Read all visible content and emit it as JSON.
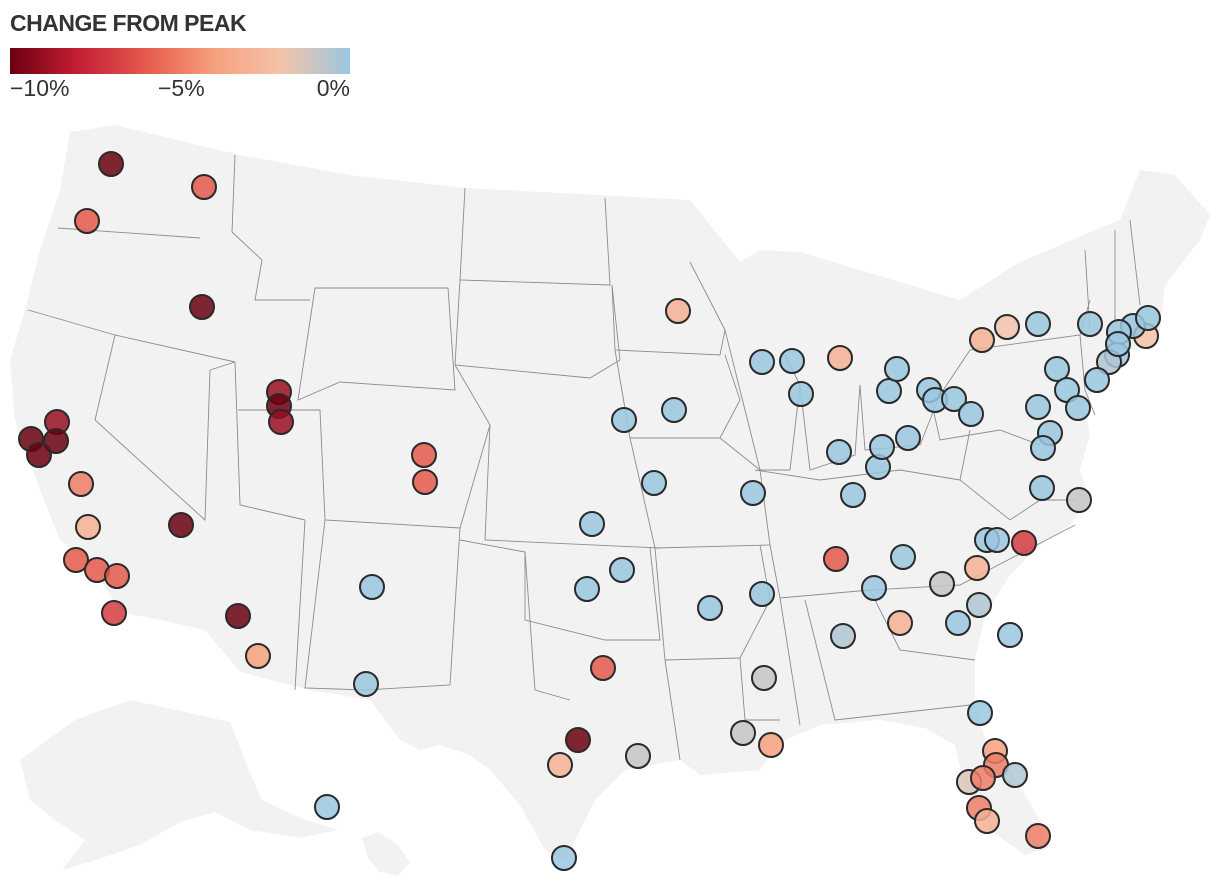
{
  "legend": {
    "title": "CHANGE FROM PEAK",
    "ticks": [
      "−10%",
      "−5%",
      "0%"
    ],
    "colors": [
      "#6b000f",
      "#c41e35",
      "#e5594c",
      "#f7a07e",
      "#f3c3aa",
      "#9ac7e0"
    ]
  },
  "points": [
    {
      "place": "WA",
      "pct": -10
    },
    {
      "place": "WA",
      "pct": -6
    },
    {
      "place": "WA",
      "pct": -6
    },
    {
      "place": "ID",
      "pct": -10
    },
    {
      "place": "UT",
      "pct": -9
    },
    {
      "place": "UT",
      "pct": -10
    },
    {
      "place": "UT",
      "pct": -9
    },
    {
      "place": "CO",
      "pct": -6
    },
    {
      "place": "CO",
      "pct": -6
    },
    {
      "place": "CA",
      "pct": -9
    },
    {
      "place": "CA",
      "pct": -10
    },
    {
      "place": "CA",
      "pct": -10
    },
    {
      "place": "CA",
      "pct": -10
    },
    {
      "place": "CA",
      "pct": -5
    },
    {
      "place": "CA",
      "pct": -3
    },
    {
      "place": "CA",
      "pct": -6
    },
    {
      "place": "CA",
      "pct": -6
    },
    {
      "place": "CA",
      "pct": -6
    },
    {
      "place": "CA",
      "pct": -7
    },
    {
      "place": "NV",
      "pct": -10
    },
    {
      "place": "AZ",
      "pct": -10
    },
    {
      "place": "AZ",
      "pct": -4
    },
    {
      "place": "NM",
      "pct": 0
    },
    {
      "place": "TX",
      "pct": 0
    },
    {
      "place": "MN",
      "pct": -3
    },
    {
      "place": "IA",
      "pct": 0
    },
    {
      "place": "IA",
      "pct": 0
    },
    {
      "place": "WI",
      "pct": 0
    },
    {
      "place": "WI",
      "pct": 0
    },
    {
      "place": "MI",
      "pct": -3
    },
    {
      "place": "IL",
      "pct": 0
    },
    {
      "place": "MO",
      "pct": 0
    },
    {
      "place": "MO",
      "pct": 0
    },
    {
      "place": "KS",
      "pct": 0
    },
    {
      "place": "OK",
      "pct": 0
    },
    {
      "place": "OK",
      "pct": 0
    },
    {
      "place": "TX",
      "pct": -6
    },
    {
      "place": "TX",
      "pct": -10
    },
    {
      "place": "TX",
      "pct": -3
    },
    {
      "place": "TX",
      "pct": -1
    },
    {
      "place": "TX",
      "pct": 0
    },
    {
      "place": "AR",
      "pct": 0
    },
    {
      "place": "LA",
      "pct": -1
    },
    {
      "place": "LA",
      "pct": -1
    },
    {
      "place": "LA",
      "pct": -4
    },
    {
      "place": "TN",
      "pct": 0
    },
    {
      "place": "TN",
      "pct": -6
    },
    {
      "place": "TN",
      "pct": 0
    },
    {
      "place": "TN",
      "pct": 0
    },
    {
      "place": "AL",
      "pct": -0.5
    },
    {
      "place": "GA",
      "pct": -3
    },
    {
      "place": "GA",
      "pct": 0
    },
    {
      "place": "SC",
      "pct": -1
    },
    {
      "place": "SC",
      "pct": -0.5
    },
    {
      "place": "SC",
      "pct": 0
    },
    {
      "place": "NC",
      "pct": 0
    },
    {
      "place": "NC",
      "pct": 0
    },
    {
      "place": "NC",
      "pct": -3
    },
    {
      "place": "NC",
      "pct": -7
    },
    {
      "place": "IN",
      "pct": 0
    },
    {
      "place": "IN",
      "pct": 0
    },
    {
      "place": "IN",
      "pct": 0
    },
    {
      "place": "KY",
      "pct": 0
    },
    {
      "place": "KY",
      "pct": 0
    },
    {
      "place": "OH",
      "pct": 0
    },
    {
      "place": "OH",
      "pct": 0
    },
    {
      "place": "OH",
      "pct": 0
    },
    {
      "place": "OH",
      "pct": 0
    },
    {
      "place": "OH",
      "pct": 0
    },
    {
      "place": "OH",
      "pct": 0
    },
    {
      "place": "PA",
      "pct": -3
    },
    {
      "place": "PA",
      "pct": 0
    },
    {
      "place": "PA",
      "pct": 0
    },
    {
      "place": "PA",
      "pct": 0
    },
    {
      "place": "NY",
      "pct": -2
    },
    {
      "place": "NY",
      "pct": 0
    },
    {
      "place": "NY",
      "pct": 0
    },
    {
      "place": "NY",
      "pct": 0
    },
    {
      "place": "MA",
      "pct": -2
    },
    {
      "place": "MA",
      "pct": 0
    },
    {
      "place": "MA",
      "pct": 0
    },
    {
      "place": "CT",
      "pct": 0
    },
    {
      "place": "CT",
      "pct": 0
    },
    {
      "place": "CT",
      "pct": -0.5
    },
    {
      "place": "NJ",
      "pct": 0
    },
    {
      "place": "NJ",
      "pct": 0
    },
    {
      "place": "MD",
      "pct": 0
    },
    {
      "place": "VA",
      "pct": -1
    },
    {
      "place": "VA",
      "pct": 0
    },
    {
      "place": "VA",
      "pct": 0
    },
    {
      "place": "FL",
      "pct": -4
    },
    {
      "place": "FL",
      "pct": -5
    },
    {
      "place": "FL",
      "pct": -0.5
    },
    {
      "place": "FL",
      "pct": -1.5
    },
    {
      "place": "FL",
      "pct": -5
    },
    {
      "place": "FL",
      "pct": -5
    },
    {
      "place": "FL",
      "pct": -3
    },
    {
      "place": "FL",
      "pct": -5
    },
    {
      "place": "FL",
      "pct": 0
    },
    {
      "place": "AK",
      "pct": 0
    },
    {
      "place": "HI",
      "pct": 0
    }
  ]
}
